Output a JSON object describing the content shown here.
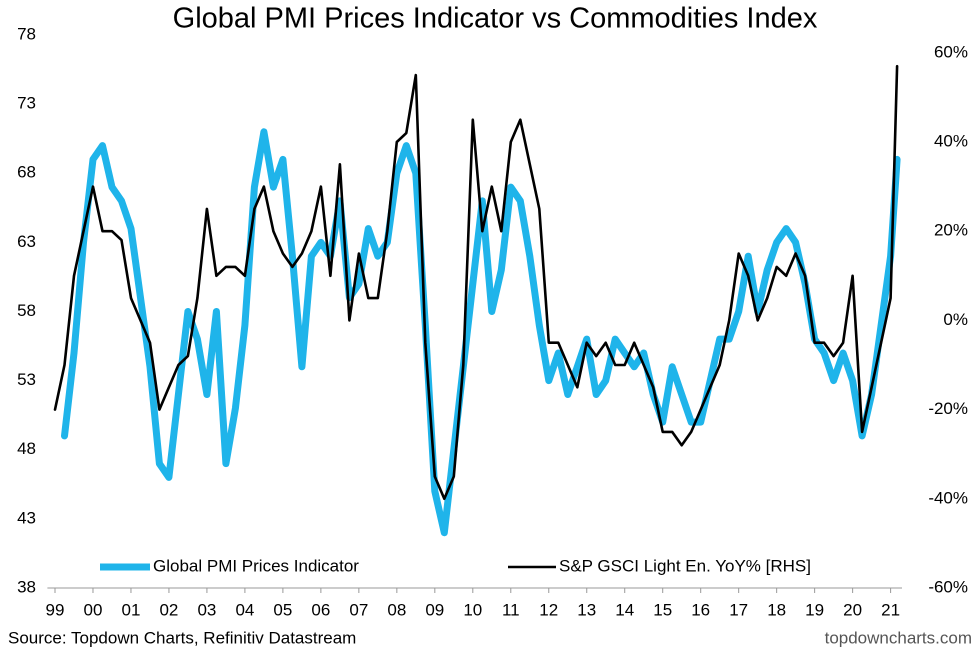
{
  "chart_data": {
    "type": "line",
    "title": "Global PMI Prices Indicator vs Commodities Index",
    "source": "Source: Topdown Charts, Refinitiv Datastream",
    "watermark": "topdowncharts.com",
    "legend": "bottom",
    "x": [
      1999,
      1999.25,
      1999.5,
      1999.75,
      2000,
      2000.25,
      2000.5,
      2000.75,
      2001,
      2001.25,
      2001.5,
      2001.75,
      2002,
      2002.25,
      2002.5,
      2002.75,
      2003,
      2003.25,
      2003.5,
      2003.75,
      2004,
      2004.25,
      2004.5,
      2004.75,
      2005,
      2005.25,
      2005.5,
      2005.75,
      2006,
      2006.25,
      2006.5,
      2006.75,
      2007,
      2007.25,
      2007.5,
      2007.75,
      2008,
      2008.25,
      2008.5,
      2008.75,
      2009,
      2009.25,
      2009.5,
      2009.75,
      2010,
      2010.25,
      2010.5,
      2010.75,
      2011,
      2011.25,
      2011.5,
      2011.75,
      2012,
      2012.25,
      2012.5,
      2012.75,
      2013,
      2013.25,
      2013.5,
      2013.75,
      2014,
      2014.25,
      2014.5,
      2014.75,
      2015,
      2015.25,
      2015.5,
      2015.75,
      2016,
      2016.25,
      2016.5,
      2016.75,
      2017,
      2017.25,
      2017.5,
      2017.75,
      2018,
      2018.25,
      2018.5,
      2018.75,
      2019,
      2019.25,
      2019.5,
      2019.75,
      2020,
      2020.25,
      2020.5,
      2020.75,
      2021,
      2021.17
    ],
    "xlim": [
      1998.8,
      2021.3
    ],
    "xticks": [
      {
        "value": 1999,
        "label": "99"
      },
      {
        "value": 2000,
        "label": "00"
      },
      {
        "value": 2001,
        "label": "01"
      },
      {
        "value": 2002,
        "label": "02"
      },
      {
        "value": 2003,
        "label": "03"
      },
      {
        "value": 2004,
        "label": "04"
      },
      {
        "value": 2005,
        "label": "05"
      },
      {
        "value": 2006,
        "label": "06"
      },
      {
        "value": 2007,
        "label": "07"
      },
      {
        "value": 2008,
        "label": "08"
      },
      {
        "value": 2009,
        "label": "09"
      },
      {
        "value": 2010,
        "label": "10"
      },
      {
        "value": 2011,
        "label": "11"
      },
      {
        "value": 2012,
        "label": "12"
      },
      {
        "value": 2013,
        "label": "13"
      },
      {
        "value": 2014,
        "label": "14"
      },
      {
        "value": 2015,
        "label": "15"
      },
      {
        "value": 2016,
        "label": "16"
      },
      {
        "value": 2017,
        "label": "17"
      },
      {
        "value": 2018,
        "label": "18"
      },
      {
        "value": 2019,
        "label": "19"
      },
      {
        "value": 2020,
        "label": "20"
      },
      {
        "value": 2021,
        "label": "21"
      }
    ],
    "ylim": [
      38,
      78
    ],
    "yticks": [
      38,
      43,
      48,
      53,
      58,
      63,
      68,
      73,
      78
    ],
    "y2lim": [
      -60,
      64
    ],
    "y2ticks": [
      {
        "value": -60,
        "label": "-60%"
      },
      {
        "value": -40,
        "label": "-40%"
      },
      {
        "value": -20,
        "label": "-20%"
      },
      {
        "value": 0,
        "label": "0%"
      },
      {
        "value": 20,
        "label": "20%"
      },
      {
        "value": 40,
        "label": "40%"
      },
      {
        "value": 60,
        "label": "60%"
      }
    ],
    "series": [
      {
        "name": "Global PMI Prices Indicator",
        "color": "#1fb4ea",
        "axis": "y",
        "values": [
          null,
          49,
          55,
          63,
          69,
          70,
          67,
          66,
          64,
          59,
          54,
          47,
          46,
          52,
          58,
          56,
          52,
          58,
          47,
          51,
          57,
          67,
          71,
          67,
          69,
          62,
          54,
          62,
          63,
          62,
          66,
          59,
          60,
          64,
          62,
          63,
          68,
          70,
          68,
          57,
          45,
          42,
          48,
          54,
          60,
          66,
          58,
          61,
          67,
          66,
          62,
          57,
          53,
          55,
          52,
          54,
          56,
          52,
          53,
          56,
          55,
          54,
          55,
          52,
          50,
          54,
          52,
          50,
          50,
          53,
          56,
          56,
          58,
          62,
          58,
          61,
          63,
          64,
          63,
          60,
          56,
          55,
          53,
          55,
          53,
          49,
          52,
          57,
          62,
          69
        ]
      },
      {
        "name": "S&P GSCI Light En. YoY% [RHS]",
        "color": "#000000",
        "axis": "y2",
        "values": [
          -20,
          -10,
          10,
          20,
          30,
          20,
          20,
          18,
          5,
          0,
          -5,
          -20,
          -15,
          -10,
          -8,
          5,
          25,
          10,
          12,
          12,
          10,
          25,
          30,
          20,
          15,
          12,
          15,
          20,
          30,
          10,
          35,
          0,
          15,
          5,
          5,
          20,
          40,
          42,
          55,
          -5,
          -35,
          -40,
          -35,
          -10,
          45,
          20,
          30,
          20,
          40,
          45,
          35,
          25,
          -5,
          -5,
          -10,
          -15,
          -5,
          -8,
          -5,
          -10,
          -10,
          -5,
          -10,
          -15,
          -25,
          -25,
          -28,
          -25,
          -20,
          -15,
          -10,
          0,
          15,
          10,
          0,
          5,
          12,
          10,
          15,
          10,
          -5,
          -5,
          -8,
          -5,
          10,
          -25,
          -15,
          -5,
          5,
          57
        ]
      }
    ]
  }
}
